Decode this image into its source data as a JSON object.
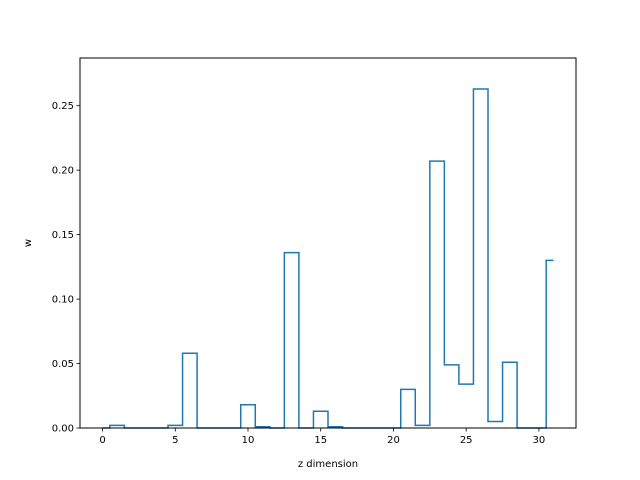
{
  "chart_data": {
    "type": "step",
    "title": "",
    "xlabel": "z dimension",
    "ylabel": "w",
    "xlim": [
      -1.55,
      32.55
    ],
    "ylim": [
      0.0,
      0.287
    ],
    "xticks": [
      0,
      5,
      10,
      15,
      20,
      25,
      30
    ],
    "yticks": [
      0.0,
      0.05,
      0.1,
      0.15,
      0.2,
      0.25
    ],
    "ytick_labels": [
      "0.00",
      "0.05",
      "0.10",
      "0.15",
      "0.20",
      "0.25"
    ],
    "grid": false,
    "legend": "none",
    "color": "#1f77b4",
    "x": [
      0,
      1,
      2,
      3,
      4,
      5,
      6,
      7,
      8,
      9,
      10,
      11,
      12,
      13,
      14,
      15,
      16,
      17,
      18,
      19,
      20,
      21,
      22,
      23,
      24,
      25,
      26,
      27,
      28,
      29,
      30,
      31
    ],
    "values": [
      0.0,
      0.002,
      0.0,
      0.0,
      0.0,
      0.002,
      0.058,
      0.0,
      0.0,
      0.0,
      0.018,
      0.001,
      0.0,
      0.136,
      0.0,
      0.013,
      0.001,
      0.0,
      0.0,
      0.0,
      0.0,
      0.03,
      0.002,
      0.207,
      0.049,
      0.034,
      0.263,
      0.005,
      0.051,
      0.0,
      0.0,
      0.13
    ]
  }
}
